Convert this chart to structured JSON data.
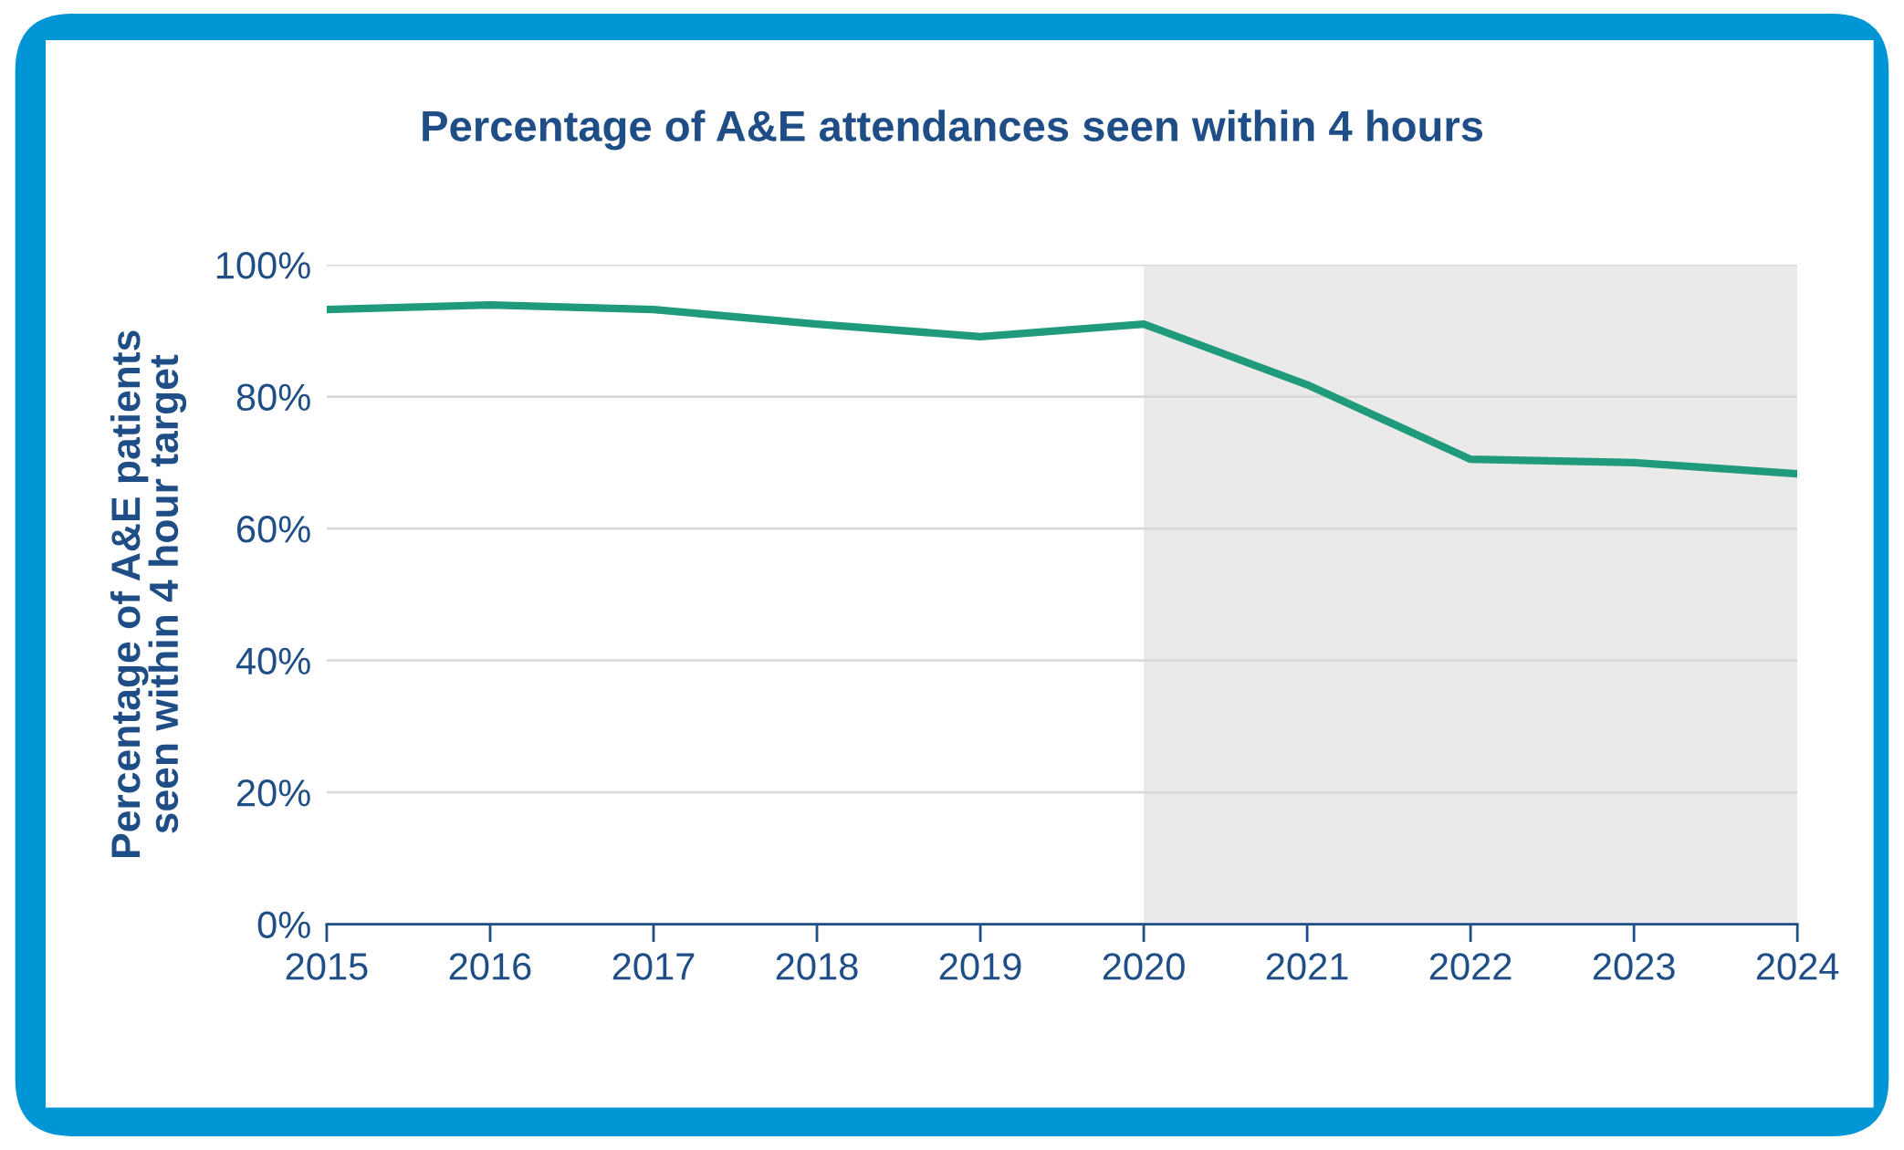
{
  "chart_data": {
    "type": "line",
    "title": "Percentage of A&E attendances seen within 4 hours",
    "ylabel": "Percentage of A&E patients\nseen within 4 hour target",
    "x": [
      2015,
      2016,
      2017,
      2018,
      2019,
      2020,
      2021,
      2022,
      2023,
      2024
    ],
    "series": [
      {
        "color": "#1f9a7a",
        "values": [
          93.2,
          93.9,
          93.2,
          91.0,
          89.1,
          91.0,
          81.8,
          70.5,
          70.0,
          68.3
        ]
      }
    ],
    "xlim": [
      2015,
      2024
    ],
    "xticks": [
      2015,
      2016,
      2017,
      2018,
      2019,
      2020,
      2021,
      2022,
      2023,
      2024
    ],
    "ylim": [
      0,
      100
    ],
    "yticks": [
      {
        "value": 0,
        "label": "0%"
      },
      {
        "value": 20,
        "label": "20%"
      },
      {
        "value": 40,
        "label": "40%"
      },
      {
        "value": 60,
        "label": "60%"
      },
      {
        "value": 80,
        "label": "80%"
      },
      {
        "value": 100,
        "label": "100%"
      }
    ],
    "bands": [
      {
        "axis": "x",
        "from": 2020,
        "to": 2024,
        "label": null,
        "color": "#e9eae9"
      }
    ],
    "grid": "y",
    "marker": "none",
    "line_style": "solid"
  }
}
